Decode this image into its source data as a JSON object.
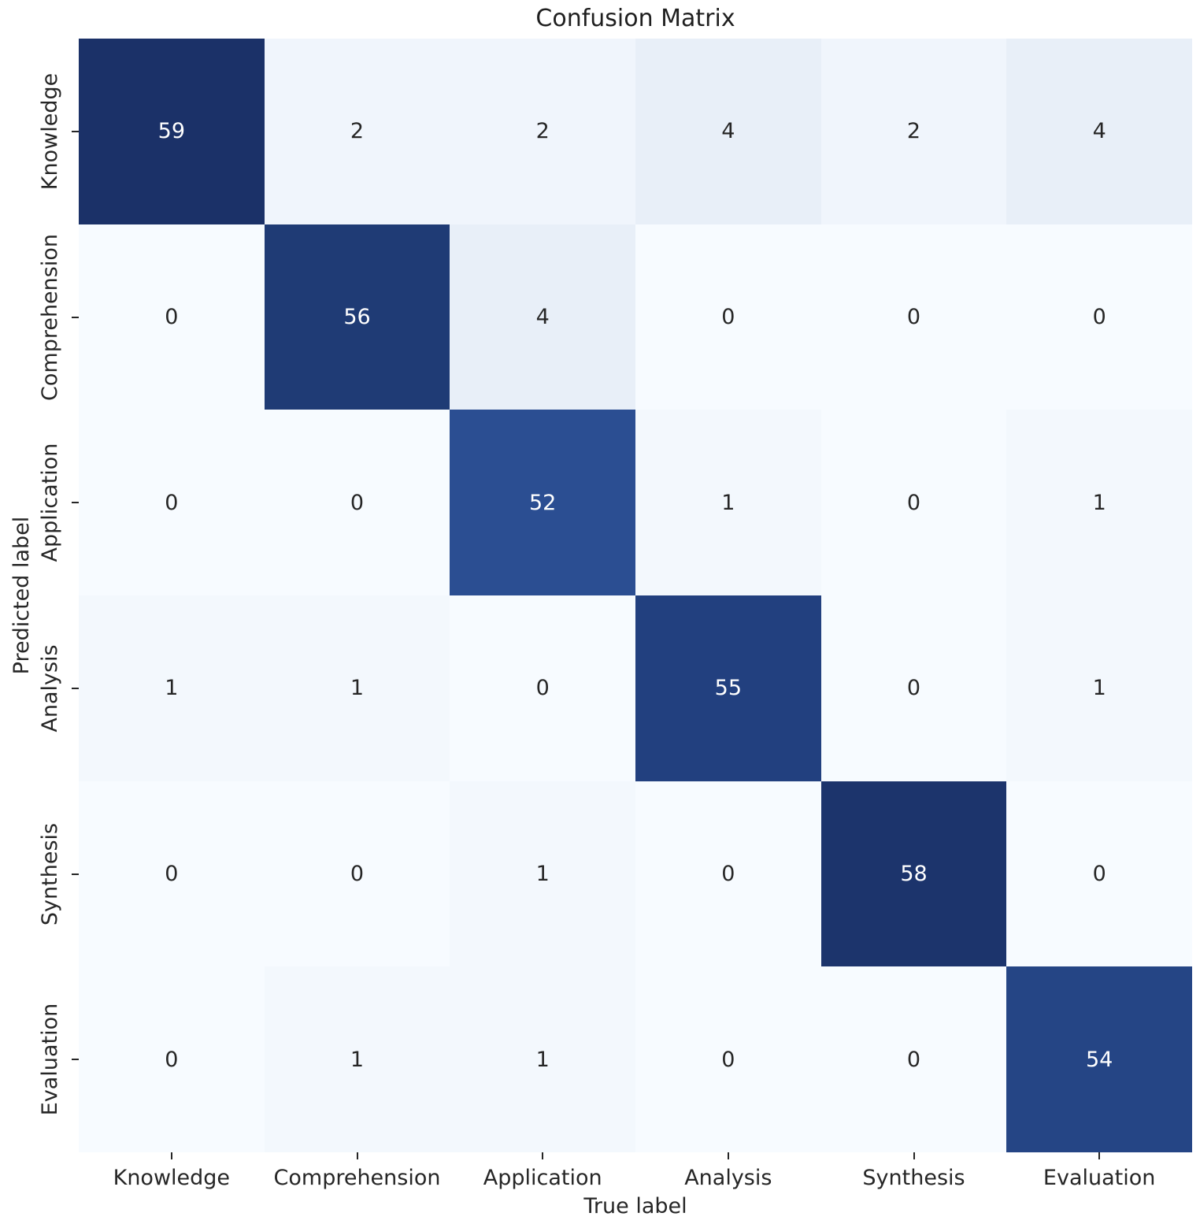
{
  "chart_data": {
    "type": "heatmap",
    "title": "Confusion Matrix",
    "xlabel": "True label",
    "ylabel": "Predicted label",
    "x_categories": [
      "Knowledge",
      "Comprehension",
      "Application",
      "Analysis",
      "Synthesis",
      "Evaluation"
    ],
    "y_categories": [
      "Knowledge",
      "Comprehension",
      "Application",
      "Analysis",
      "Synthesis",
      "Evaluation"
    ],
    "matrix": [
      [
        59,
        2,
        2,
        4,
        2,
        4
      ],
      [
        0,
        56,
        4,
        0,
        0,
        0
      ],
      [
        0,
        0,
        52,
        1,
        0,
        1
      ],
      [
        1,
        1,
        0,
        55,
        0,
        1
      ],
      [
        0,
        0,
        1,
        0,
        58,
        0
      ],
      [
        0,
        1,
        1,
        0,
        0,
        54
      ]
    ],
    "vmin": 0,
    "vmax": 59,
    "colormap": {
      "name": "Blues",
      "stops": [
        [
          0.0,
          "#f7fbff"
        ],
        [
          0.07,
          "#e8eff8"
        ],
        [
          0.45,
          "#6fa1cf"
        ],
        [
          0.88,
          "#2b4e92"
        ],
        [
          0.93,
          "#224180"
        ],
        [
          0.95,
          "#1f3b74"
        ],
        [
          1.0,
          "#1b3168"
        ]
      ]
    },
    "annotation_text_colors": {
      "light": "#262626",
      "dark": "#ffffff"
    },
    "legend": "none",
    "grid": false
  }
}
